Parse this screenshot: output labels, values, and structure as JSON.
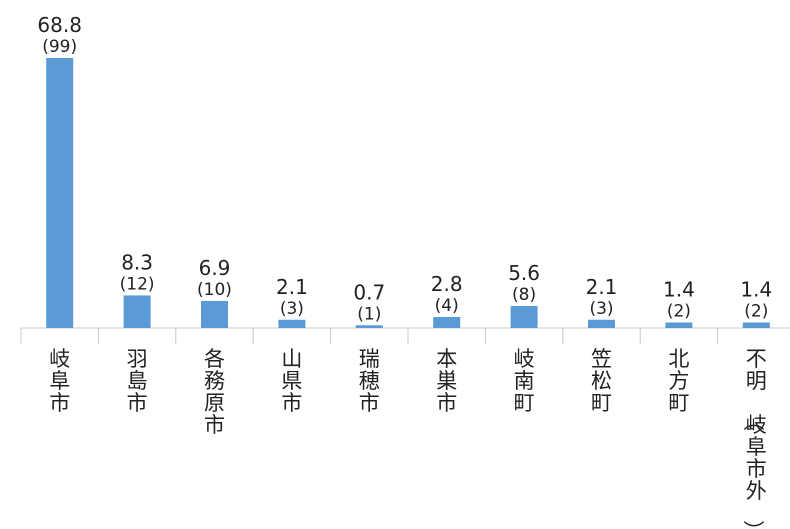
{
  "chart_data": {
    "type": "bar",
    "categories": [
      "岐阜市",
      "羽島市",
      "各務原市",
      "山県市",
      "瑞穂市",
      "本巣市",
      "岐南町",
      "笠松町",
      "北方町",
      "不明（岐阜市外）"
    ],
    "values": [
      68.8,
      8.3,
      6.9,
      2.1,
      0.7,
      2.8,
      5.6,
      2.1,
      1.4,
      1.4
    ],
    "value_labels": [
      "68.8",
      "8.3",
      "6.9",
      "2.1",
      "0.7",
      "2.8",
      "5.6",
      "2.1",
      "1.4",
      "1.4"
    ],
    "count_labels": [
      "(99)",
      "(12)",
      "(10)",
      "(3)",
      "(1)",
      "(4)",
      "(8)",
      "(3)",
      "(2)",
      "(2)"
    ],
    "bar_color": "#5B9BD5",
    "grid": false,
    "legend": "none"
  }
}
